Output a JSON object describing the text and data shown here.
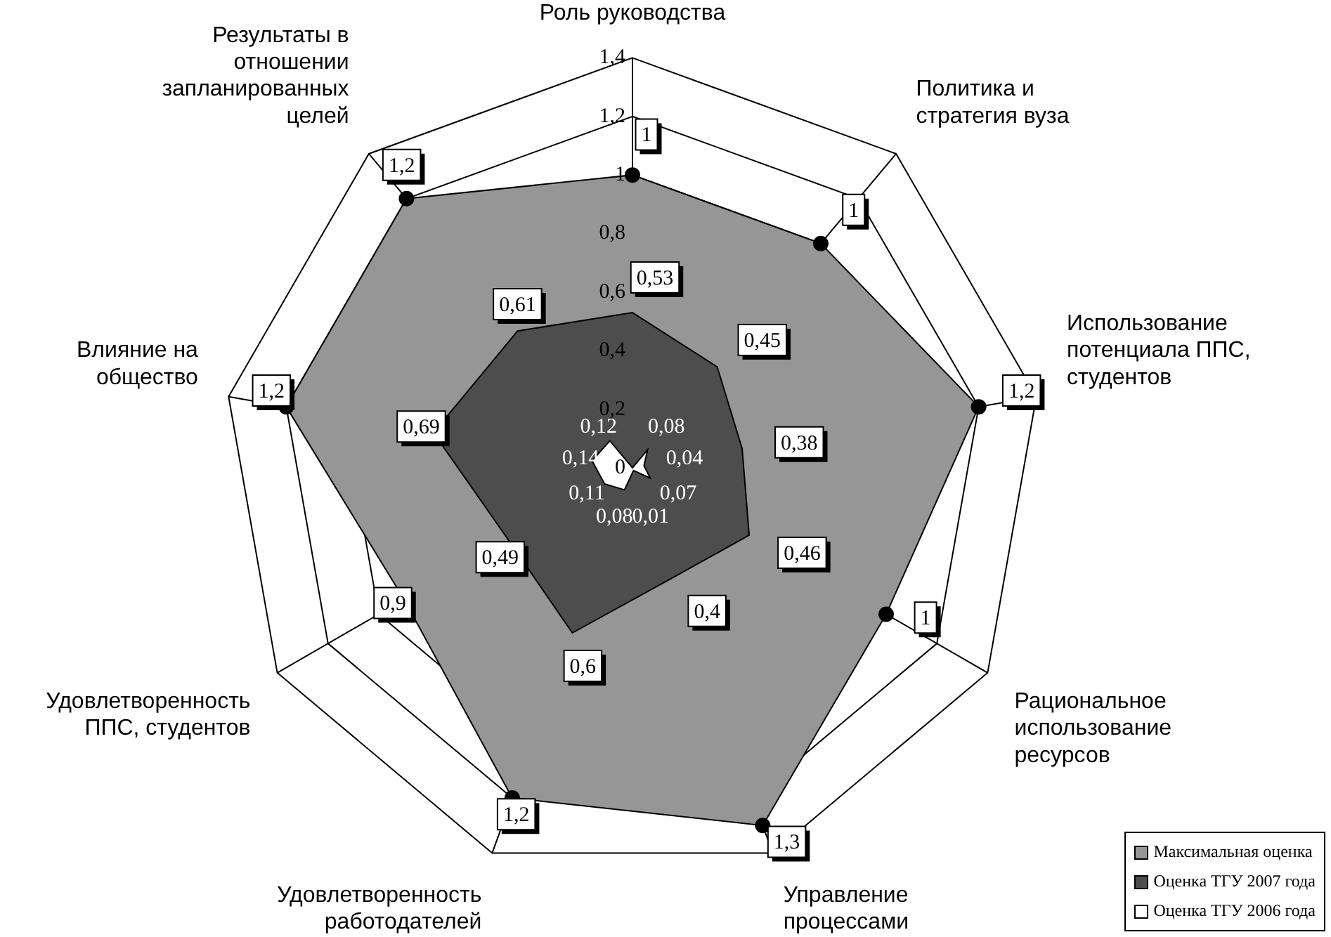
{
  "chart_data": {
    "type": "radar",
    "categories": [
      "Роль руководства",
      "Политика и\nстратегия вуза",
      "Использование\nпотенциала ППС,\nстудентов",
      "Рациональное\nиспользование\nресурсов",
      "Управление\nпроцессами",
      "Удовлетворенность\nработодателей",
      "Удовлетворенность\nППС, студентов",
      "Влияние на\nобщество",
      "Результаты в\nотношении\nзапланированных\nцелей"
    ],
    "series": [
      {
        "name": "Максимальная оценка",
        "color": "#969696",
        "values": [
          1,
          1,
          1.2,
          1,
          1.3,
          1.2,
          0.9,
          1.2,
          1.2
        ],
        "value_labels": [
          "1",
          "1",
          "1,2",
          "1",
          "1,3",
          "1,2",
          "0,9",
          "1,2",
          "1,2"
        ]
      },
      {
        "name": "Оценка ТГУ 2007 года",
        "color": "#4d4d4d",
        "values": [
          0.53,
          0.45,
          0.38,
          0.46,
          0.4,
          0.6,
          0.49,
          0.69,
          0.61
        ],
        "value_labels": [
          "0,53",
          "0,45",
          "0,38",
          "0,46",
          "0,4",
          "0,6",
          "0,49",
          "0,69",
          "0,61"
        ]
      },
      {
        "name": "Оценка ТГУ 2006 года",
        "color": "#ffffff",
        "values": [
          0,
          0.08,
          0.04,
          0.07,
          0.01,
          0.08,
          0.11,
          0.14,
          0.12
        ],
        "value_labels": [
          null,
          "0,08",
          "0,04",
          "0,07",
          "0,01",
          "0,08",
          "0,11",
          "0,14",
          "0,12"
        ]
      }
    ],
    "ylim": [
      0,
      1.4
    ],
    "yticks": [
      0,
      {
        "value": 0.2,
        "label": "0,2"
      },
      {
        "value": 0.4,
        "label": "0,4"
      },
      {
        "value": 0.6,
        "label": "0,6"
      },
      {
        "value": 0.8,
        "label": "0,8"
      },
      1,
      {
        "value": 1.2,
        "label": "1,2"
      },
      {
        "value": 1.4,
        "label": "1,4"
      }
    ],
    "grid": true,
    "legend": "bottom right",
    "marker": "circle"
  }
}
